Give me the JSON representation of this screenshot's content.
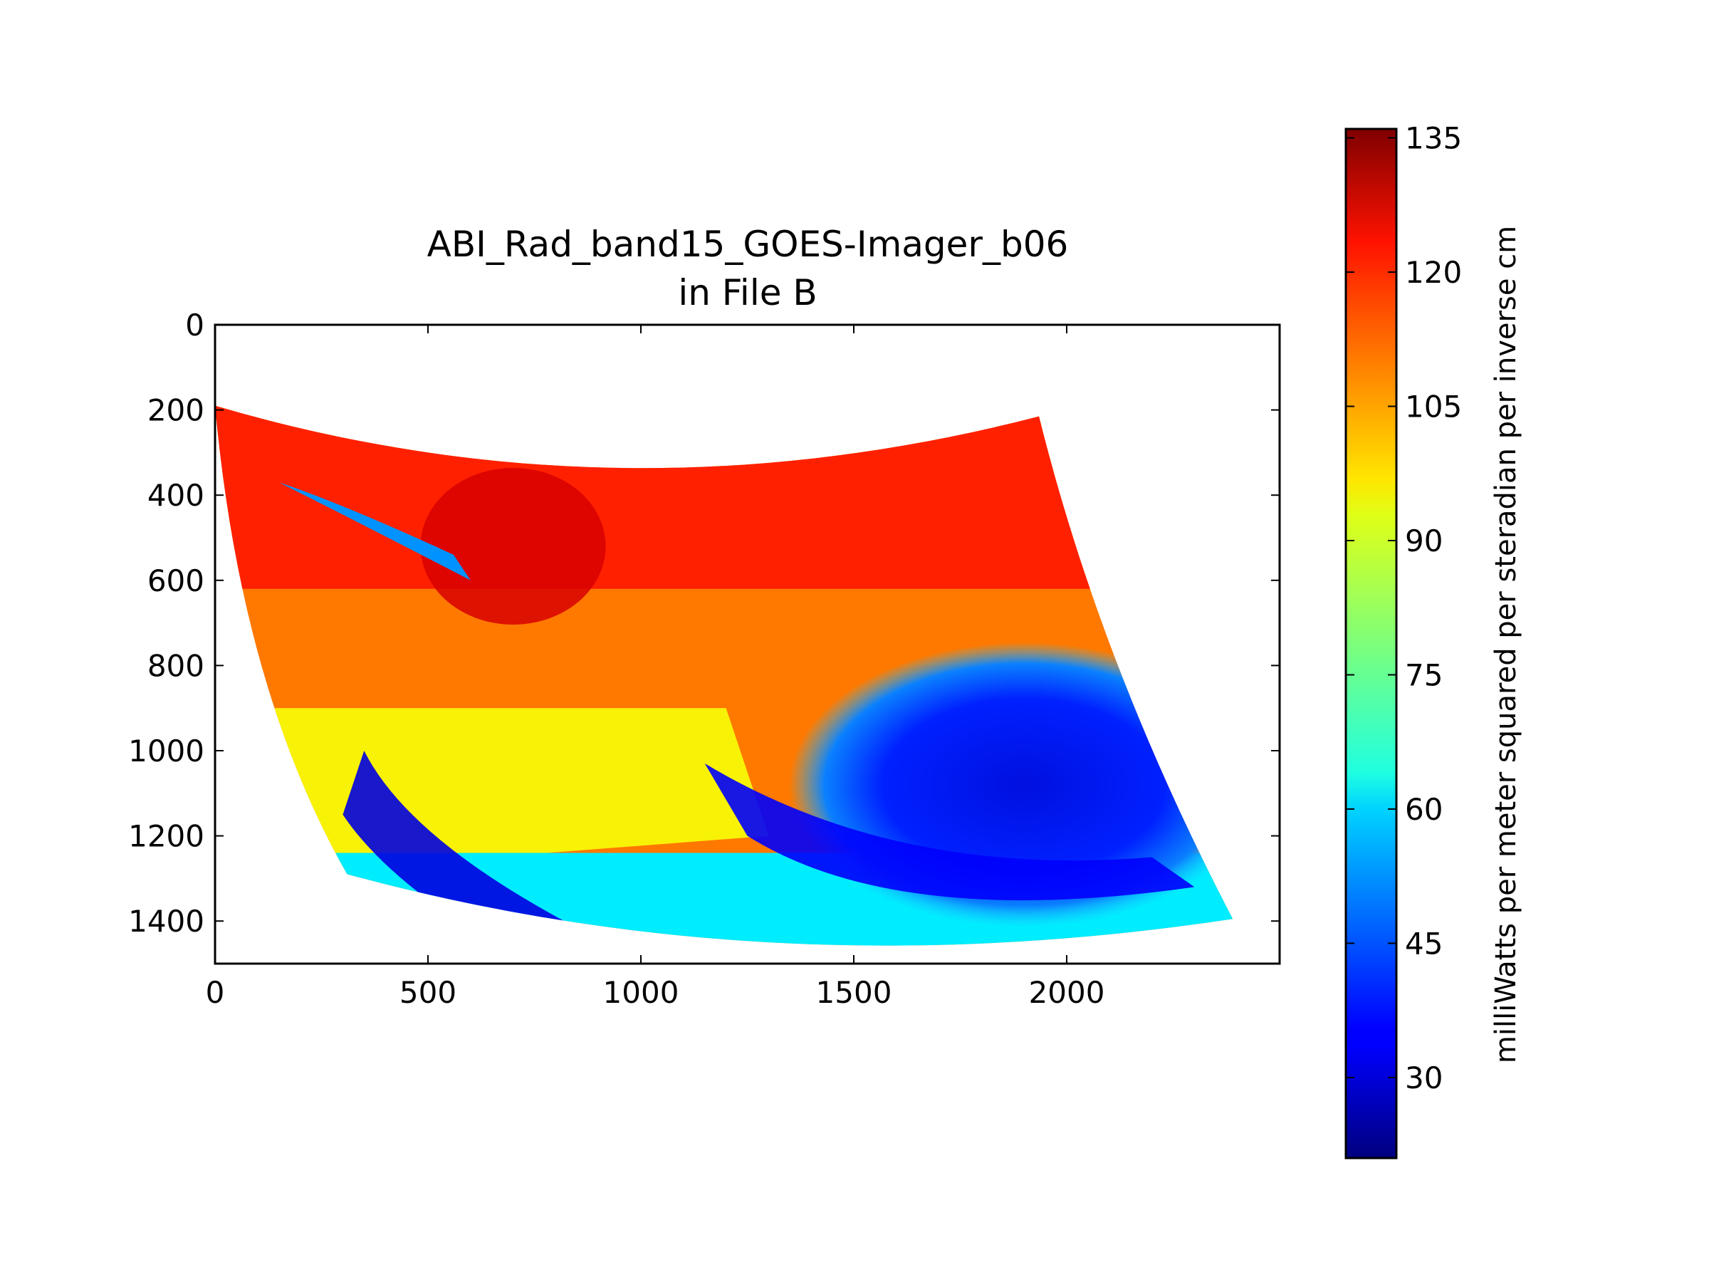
{
  "chart_data": {
    "type": "heatmap",
    "title_line1": "ABI_Rad_band15_GOES-Imager_b06",
    "title_line2": "in File B",
    "xlim": [
      0,
      2500
    ],
    "ylim": [
      1500,
      0
    ],
    "x_ticks": [
      0,
      500,
      1000,
      1500,
      2000
    ],
    "y_ticks": [
      0,
      200,
      400,
      600,
      800,
      1000,
      1200,
      1400
    ],
    "y_inverted": true,
    "colormap": "jet",
    "colorbar": {
      "label": "milliWatts per meter squared per steradian per inverse cm",
      "range": [
        21,
        136
      ],
      "ticks": [
        30,
        45,
        60,
        75,
        90,
        105,
        120,
        135
      ]
    },
    "image_region": {
      "approx_corners": {
        "top_left": [
          0,
          190
        ],
        "top_right": [
          1935,
          215
        ],
        "bottom_right": [
          2390,
          1395
        ],
        "bottom_left": [
          310,
          1290
        ]
      },
      "regions": [
        {
          "name": "north / upper area",
          "approx_value": 118
        },
        {
          "name": "central land band",
          "approx_value": 108
        },
        {
          "name": "western lower area",
          "approx_value": 92
        },
        {
          "name": "southern cloud swirl",
          "approx_value": 35
        },
        {
          "name": "south-west cloud band",
          "approx_value": 32
        },
        {
          "name": "southern edge",
          "approx_value": 62
        }
      ]
    }
  }
}
